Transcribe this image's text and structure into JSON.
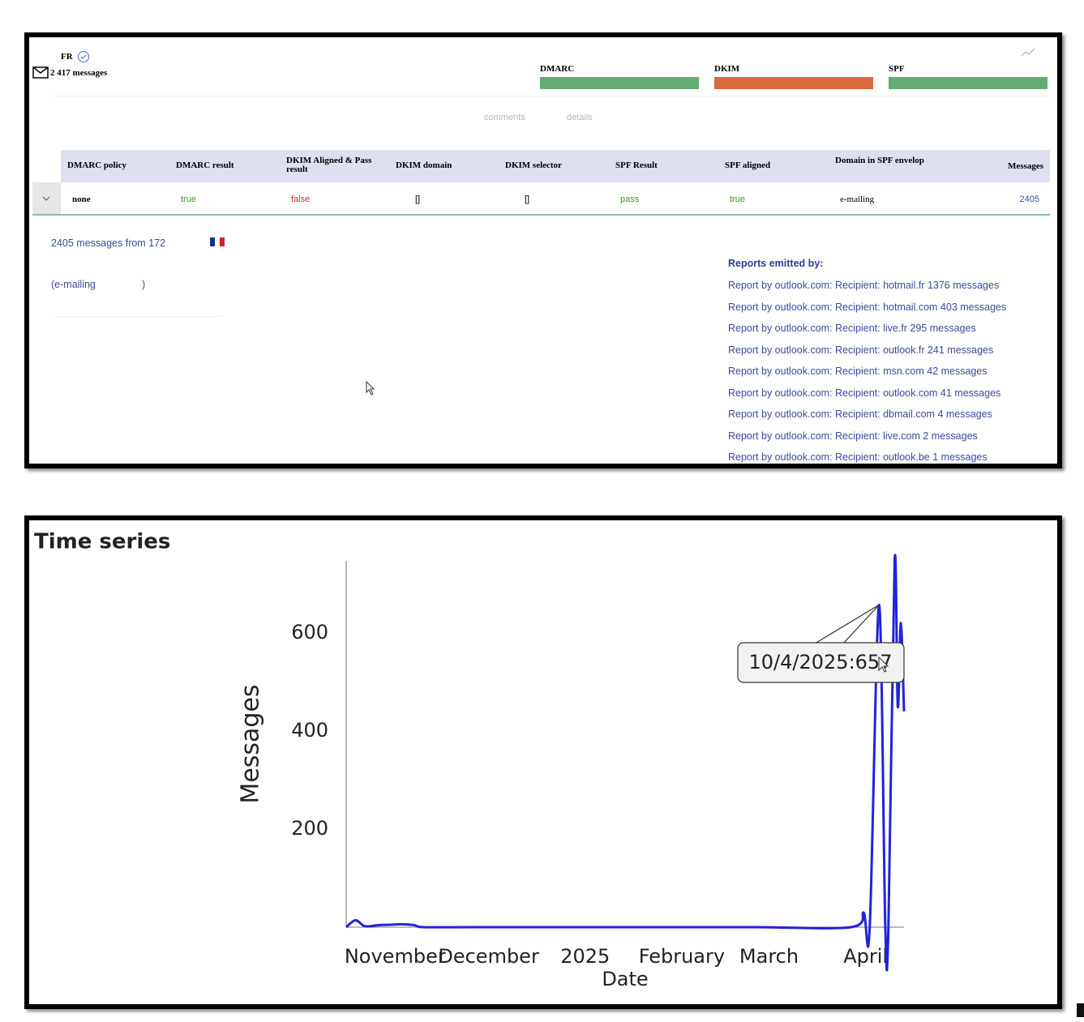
{
  "header": {
    "country": "FR",
    "messages": "2 417 messages",
    "checks": [
      "DMARC",
      "DKIM",
      "SPF"
    ]
  },
  "tabs": [
    "comments",
    "details"
  ],
  "table": {
    "headers": [
      "DMARC policy",
      "DMARC result",
      "DKIM Aligned & Pass result",
      "DKIM domain",
      "DKIM selector",
      "SPF Result",
      "SPF aligned",
      "Domain in SPF envelop",
      "Messages"
    ],
    "rows": [
      [
        "none",
        "true",
        "false",
        "[]",
        "[]",
        "pass",
        "true",
        "e-mailing",
        "2405"
      ]
    ]
  },
  "detail": {
    "source": "2405 messages from 172",
    "domain_open": "(e-mailing",
    "domain_close": ")"
  },
  "reports": {
    "title": "Reports emitted by:",
    "items": [
      "Report by outlook.com: Recipient: hotmail.fr 1376 messages",
      "Report by outlook.com: Recipient: hotmail.com 403 messages",
      "Report by outlook.com: Recipient: live.fr 295 messages",
      "Report by outlook.com: Recipient: outlook.fr 241 messages",
      "Report by outlook.com: Recipient: msn.com 42 messages",
      "Report by outlook.com: Recipient: outlook.com 41 messages",
      "Report by outlook.com: Recipient: dbmail.com 4 messages",
      "Report by outlook.com: Recipient: live.com 2 messages",
      "Report by outlook.com: Recipient: outlook.be 1 messages"
    ]
  },
  "chart_data": {
    "type": "line",
    "title": "Time series",
    "x_label": "Date",
    "y_label": "Messages",
    "x": [
      "2024-10-21",
      "2024-10-24",
      "2024-10-27",
      "2024-10-31",
      "2024-11-04",
      "2024-11-08",
      "2024-11-12",
      "2024-11-15",
      "2024-12-01",
      "2025-01-01",
      "2025-02-01",
      "2025-03-01",
      "2025-04-01",
      "2025-04-05",
      "2025-04-07",
      "2025-04-10",
      "2025-04-12",
      "2025-04-13",
      "2025-04-15",
      "2025-04-16",
      "2025-04-17",
      "2025-04-18"
    ],
    "series": [
      {
        "name": "Messages",
        "color": "#2222dd",
        "values": [
          0,
          14,
          2,
          4,
          5,
          6,
          4,
          0,
          0,
          0,
          0,
          0,
          0,
          30,
          0,
          657,
          0,
          0,
          748,
          450,
          620,
          440
        ]
      }
    ],
    "xlim": [
      "2024-10-21",
      "2025-04-18"
    ],
    "xticks": [
      {
        "value": "2024-11-01",
        "label": "November"
      },
      {
        "value": "2024-12-01",
        "label": "December"
      },
      {
        "value": "2025-01-01",
        "label": "2025"
      },
      {
        "value": "2025-02-01",
        "label": "February"
      },
      {
        "value": "2025-03-01",
        "label": "March"
      },
      {
        "value": "2025-04-01",
        "label": "April"
      }
    ],
    "ylim": [
      0,
      750
    ],
    "yticks": [
      200,
      400,
      600
    ],
    "annotation": "10/4/2025:657"
  }
}
